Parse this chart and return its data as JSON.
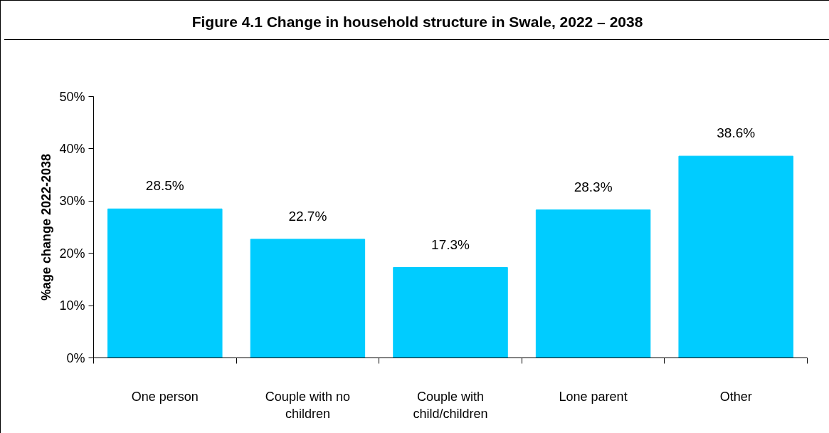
{
  "chart_data": {
    "type": "bar",
    "title": "Figure 4.1 Change in household structure in Swale, 2022 – 2038",
    "ylabel": "%age change 2022-2038",
    "categories": [
      "One person",
      "Couple with no children",
      "Couple with child/children",
      "Lone parent",
      "Other"
    ],
    "values": [
      28.5,
      22.7,
      17.3,
      28.3,
      38.6
    ],
    "value_labels": [
      "28.5%",
      "22.7%",
      "17.3%",
      "28.3%",
      "38.6%"
    ],
    "color": "#00ccff",
    "ylim": [
      0,
      50
    ],
    "yticks": [
      {
        "value": 0,
        "label": "0%"
      },
      {
        "value": 10,
        "label": "10%"
      },
      {
        "value": 20,
        "label": "20%"
      },
      {
        "value": 30,
        "label": "30%"
      },
      {
        "value": 40,
        "label": "40%"
      },
      {
        "value": 50,
        "label": "50%"
      }
    ],
    "grid": false
  }
}
